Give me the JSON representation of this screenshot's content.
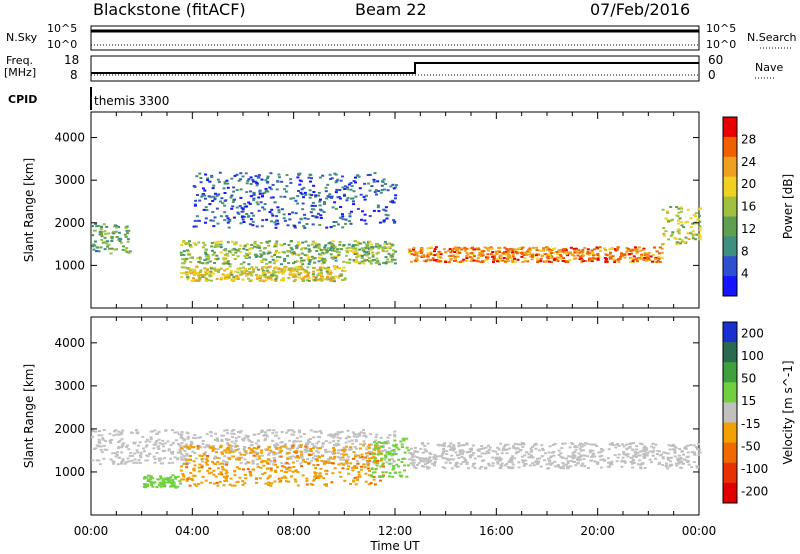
{
  "header": {
    "station": "Blackstone (fitACF)",
    "beam": "Beam 22",
    "date": "07/Feb/2016"
  },
  "top_panels": {
    "nsky_label": "N.Sky",
    "nsearch_label": "N.Search",
    "sky_ticks": [
      "10^5",
      "10^0"
    ],
    "freq_label_1": "Freq.",
    "freq_label_2": "[MHz]",
    "freq_ticks": [
      "18",
      "8"
    ],
    "nave_label": "Nave",
    "nave_ticks": [
      "60",
      "0"
    ],
    "cpid_label": "CPID",
    "cpid_text": "themis 3300"
  },
  "chart_data": [
    {
      "type": "heatmap",
      "title": "",
      "quantity": "Power",
      "colorbar_label": "Power [dB]",
      "colorbar_ticks": [
        4,
        8,
        12,
        16,
        20,
        24,
        28
      ],
      "xlabel": "",
      "ylabel": "Slant Range [km]",
      "xlim": [
        "00:00",
        "24:00"
      ],
      "ylim": [
        0,
        4600
      ],
      "yticks": [
        1000,
        2000,
        3000,
        4000
      ],
      "features": [
        {
          "x": [
            0,
            1.5
          ],
          "y": [
            1300,
            2000
          ],
          "value_db": 12
        },
        {
          "x": [
            3.5,
            12.0
          ],
          "y": [
            1050,
            1600
          ],
          "value_db": 14
        },
        {
          "x": [
            3.5,
            10.0
          ],
          "y": [
            650,
            1000
          ],
          "value_db": 18
        },
        {
          "x": [
            12.5,
            22.5
          ],
          "y": [
            1100,
            1450
          ],
          "value_db": 24
        },
        {
          "x": [
            22.5,
            24.0
          ],
          "y": [
            1500,
            2400
          ],
          "value_db": 16
        },
        {
          "x": [
            4.0,
            12.0
          ],
          "y": [
            1900,
            3200
          ],
          "value_db": 6
        }
      ]
    },
    {
      "type": "heatmap",
      "title": "",
      "quantity": "Velocity",
      "colorbar_label": "Velocity [m s^-1]",
      "colorbar_ticks": [
        200,
        100,
        50,
        15,
        -15,
        -50,
        -100,
        -200
      ],
      "xlabel": "Time UT",
      "ylabel": "Slant Range [km]",
      "xlim": [
        "00:00",
        "24:00"
      ],
      "xticks": [
        "00:00",
        "04:00",
        "08:00",
        "12:00",
        "16:00",
        "20:00",
        "00:00"
      ],
      "ylim": [
        0,
        4600
      ],
      "yticks": [
        1000,
        2000,
        3000,
        4000
      ],
      "features": [
        {
          "x": [
            0,
            12.0
          ],
          "y": [
            1200,
            2000
          ],
          "velocity": 0
        },
        {
          "x": [
            2.0,
            3.5
          ],
          "y": [
            650,
            950
          ],
          "velocity": 30
        },
        {
          "x": [
            3.5,
            11.5
          ],
          "y": [
            700,
            1650
          ],
          "velocity": -40
        },
        {
          "x": [
            11.0,
            12.5
          ],
          "y": [
            900,
            1800
          ],
          "velocity": 30
        },
        {
          "x": [
            12.5,
            24.0
          ],
          "y": [
            1100,
            1700
          ],
          "velocity": 0
        }
      ]
    }
  ],
  "colors": {
    "power_scale": [
      "#1515ff",
      "#2f4fd0",
      "#3f8f80",
      "#5fa050",
      "#a0c040",
      "#f0d020",
      "#f0a020",
      "#f06000",
      "#e80000"
    ],
    "velocity_scale": [
      "#1a2fd0",
      "#2a6a50",
      "#3fa03f",
      "#70d040",
      "#c0c0c0",
      "#f0a000",
      "#f06a00",
      "#e83000",
      "#e00000"
    ]
  }
}
